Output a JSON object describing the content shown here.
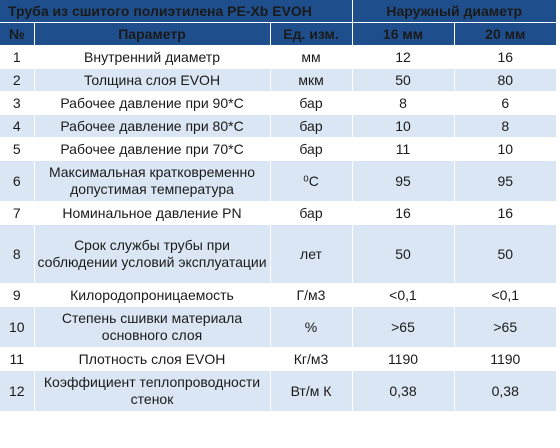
{
  "title": "Труба из сшитого полиэтилена PE-Xb EVOH",
  "group_header": "Наружный диаметр",
  "columns": {
    "num": "№",
    "param": "Параметр",
    "unit": "Ед. изм.",
    "d16": "16 мм",
    "d20": "20 мм"
  },
  "rows": [
    {
      "num": "1",
      "param": "Внутренний диаметр",
      "unit": "мм",
      "d16": "12",
      "d20": "16"
    },
    {
      "num": "2",
      "param": "Толщина слоя EVOH",
      "unit": "мкм",
      "d16": "50",
      "d20": "80"
    },
    {
      "num": "3",
      "param": "Рабочее давление при 90*С",
      "unit": "бар",
      "d16": "8",
      "d20": "6"
    },
    {
      "num": "4",
      "param": "Рабочее давление при 80*С",
      "unit": "бар",
      "d16": "10",
      "d20": "8"
    },
    {
      "num": "5",
      "param": "Рабочее давление при 70*С",
      "unit": "бар",
      "d16": "11",
      "d20": "10"
    },
    {
      "num": "6",
      "param": "Максимальная кратковременно допустимая температура",
      "unit": "⁰С",
      "d16": "95",
      "d20": "95"
    },
    {
      "num": "7",
      "param": "Номинальное давление PN",
      "unit": "бар",
      "d16": "16",
      "d20": "16"
    },
    {
      "num": "8",
      "param": "Срок службы трубы при соблюдении условий эксплуатации",
      "unit": "лет",
      "d16": "50",
      "d20": "50"
    },
    {
      "num": "9",
      "param": "Килородопроницаемость",
      "unit": "Г/м3",
      "d16": "<0,1",
      "d20": "<0,1"
    },
    {
      "num": "10",
      "param": "Степень сшивки материала основного слоя",
      "unit": "%",
      "d16": ">65",
      "d20": ">65"
    },
    {
      "num": "11",
      "param": "Плотность слоя EVOH",
      "unit": "Кг/м3",
      "d16": "1190",
      "d20": "1190"
    },
    {
      "num": "12",
      "param": "Коэффициент теплопроводности стенок",
      "unit": "Вт/м К",
      "d16": "0,38",
      "d20": "0,38"
    }
  ]
}
